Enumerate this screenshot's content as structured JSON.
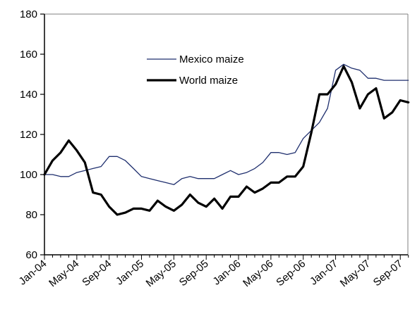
{
  "chart_data": {
    "type": "line",
    "title": "",
    "xlabel": "",
    "ylabel": "",
    "ylim": [
      60,
      180
    ],
    "yticks": [
      60,
      80,
      100,
      120,
      140,
      160,
      180
    ],
    "x_tick_labels": [
      "Jan-04",
      "May-04",
      "Sep-04",
      "Jan-05",
      "May-05",
      "Sep-05",
      "Jan-06",
      "May-06",
      "Sep-06",
      "Jan-07",
      "May-07",
      "Sep-07"
    ],
    "x": [
      "Jan-04",
      "Feb-04",
      "Mar-04",
      "Apr-04",
      "May-04",
      "Jun-04",
      "Jul-04",
      "Aug-04",
      "Sep-04",
      "Oct-04",
      "Nov-04",
      "Dec-04",
      "Jan-05",
      "Feb-05",
      "Mar-05",
      "Apr-05",
      "May-05",
      "Jun-05",
      "Jul-05",
      "Aug-05",
      "Sep-05",
      "Oct-05",
      "Nov-05",
      "Dec-05",
      "Jan-06",
      "Feb-06",
      "Mar-06",
      "Apr-06",
      "May-06",
      "Jun-06",
      "Jul-06",
      "Aug-06",
      "Sep-06",
      "Oct-06",
      "Nov-06",
      "Dec-06",
      "Jan-07",
      "Feb-07",
      "Mar-07",
      "Apr-07",
      "May-07",
      "Jun-07",
      "Jul-07",
      "Aug-07",
      "Sep-07",
      "Oct-07"
    ],
    "grid": false,
    "legend_position": "top-center",
    "series": [
      {
        "name": "Mexico maize",
        "color": "#1f2f6e",
        "values": [
          100,
          100,
          99,
          99,
          101,
          102,
          103,
          104,
          109,
          109,
          107,
          103,
          99,
          98,
          97,
          96,
          95,
          98,
          99,
          98,
          98,
          98,
          100,
          102,
          100,
          101,
          103,
          106,
          111,
          111,
          110,
          111,
          118,
          122,
          126,
          133,
          152,
          155,
          153,
          152,
          148,
          148,
          147,
          147,
          147,
          147
        ]
      },
      {
        "name": "World maize",
        "color": "#000000",
        "values": [
          100,
          107,
          111,
          117,
          112,
          106,
          91,
          90,
          84,
          80,
          81,
          83,
          83,
          82,
          87,
          84,
          82,
          85,
          90,
          86,
          84,
          88,
          83,
          89,
          89,
          94,
          91,
          93,
          96,
          96,
          99,
          99,
          104,
          121,
          140,
          140,
          145,
          154,
          146,
          133,
          140,
          143,
          128,
          131,
          137,
          136
        ]
      }
    ]
  }
}
